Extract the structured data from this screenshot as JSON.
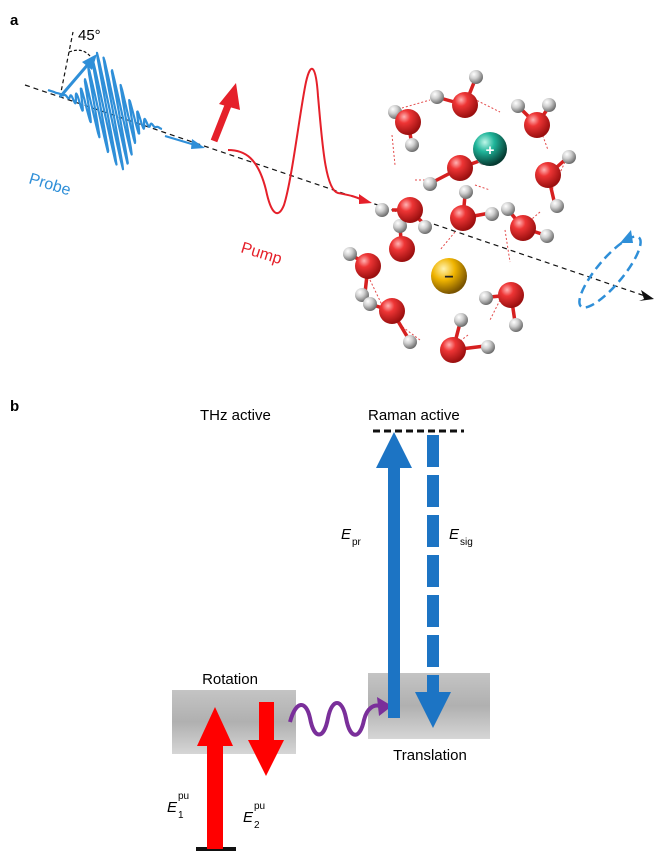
{
  "panel_a": {
    "label": "a",
    "angle_label": "45°",
    "probe_label": "Probe",
    "pump_label": "Pump",
    "cation_symbol": "+",
    "anion_symbol": "−"
  },
  "panel_b": {
    "label": "b",
    "thz_label": "THz active",
    "raman_label": "Raman active",
    "rotation_label": "Rotation",
    "translation_label": "Translation",
    "e_pr": {
      "base": "E",
      "sub": "pr"
    },
    "e_sig": {
      "base": "E",
      "sub": "sig"
    },
    "e1": {
      "base": "E",
      "sub": "1",
      "sup": "pu"
    },
    "e2": {
      "base": "E",
      "sub": "2",
      "sup": "pu"
    }
  },
  "colors": {
    "probe_blue": "#2f8fd8",
    "raman_blue": "#1c74c4",
    "pump_red": "#e5202a",
    "oxygen_red": "#e32b2b",
    "hydrogen_gray": "#c9c9c9",
    "coupling_purple": "#7a2f9a",
    "cation_teal": "#1fb59a",
    "anion_gold": "#e6a800"
  }
}
